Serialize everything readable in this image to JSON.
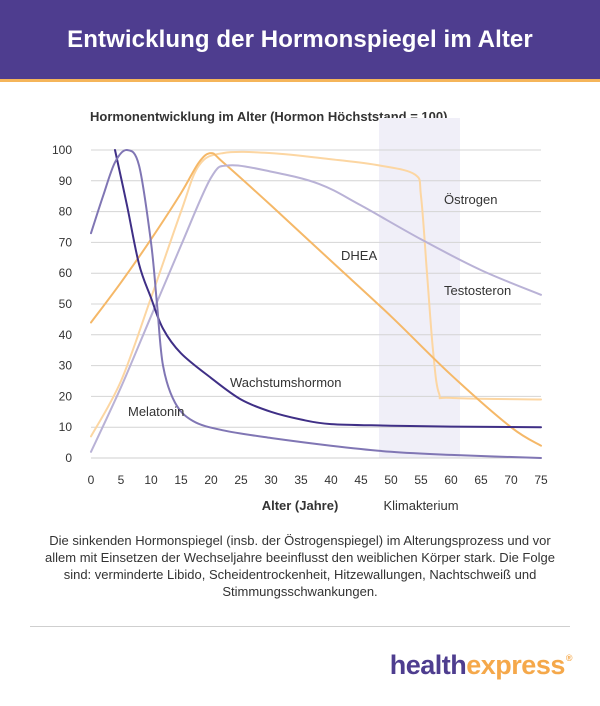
{
  "header": {
    "title": "Entwicklung der Hormonspiegel im Alter"
  },
  "chart_data": {
    "type": "line",
    "title": "Hormonentwicklung im Alter (Hormon Höchststand = 100)",
    "xlabel": "Alter (Jahre)",
    "ylabel": "",
    "xlim": [
      0,
      75
    ],
    "ylim": [
      0,
      100
    ],
    "x_ticks": [
      0,
      5,
      10,
      15,
      20,
      25,
      30,
      35,
      40,
      45,
      50,
      55,
      60,
      65,
      70,
      75
    ],
    "y_ticks": [
      0,
      10,
      20,
      30,
      40,
      50,
      60,
      70,
      80,
      90,
      100
    ],
    "grid": "horizontal",
    "highlight_band": {
      "label": "Klimakterium",
      "x_start": 48,
      "x_end": 61.5,
      "color": "#f0eff8"
    },
    "series": [
      {
        "name": "Östrogen",
        "color": "#fcd6a2",
        "points": [
          [
            0,
            7
          ],
          [
            5,
            25
          ],
          [
            10,
            52
          ],
          [
            15,
            80
          ],
          [
            18,
            95
          ],
          [
            22,
            99
          ],
          [
            30,
            99
          ],
          [
            40,
            97
          ],
          [
            48,
            95
          ],
          [
            54,
            92
          ],
          [
            55,
            85
          ],
          [
            56,
            60
          ],
          [
            57,
            35
          ],
          [
            58,
            21
          ],
          [
            60,
            19.5
          ],
          [
            75,
            19
          ]
        ]
      },
      {
        "name": "DHEA",
        "color": "#f5b868",
        "points": [
          [
            0,
            44
          ],
          [
            5,
            57
          ],
          [
            10,
            71
          ],
          [
            15,
            86
          ],
          [
            18,
            96
          ],
          [
            20,
            99
          ],
          [
            22,
            96
          ],
          [
            30,
            82
          ],
          [
            40,
            64
          ],
          [
            50,
            46
          ],
          [
            60,
            27
          ],
          [
            70,
            10
          ],
          [
            75,
            4
          ]
        ]
      },
      {
        "name": "Testosteron",
        "color": "#b9b2d6",
        "points": [
          [
            0,
            2
          ],
          [
            5,
            23
          ],
          [
            10,
            46
          ],
          [
            15,
            69
          ],
          [
            20,
            91
          ],
          [
            23,
            95
          ],
          [
            30,
            93
          ],
          [
            38,
            89
          ],
          [
            45,
            82
          ],
          [
            55,
            71
          ],
          [
            65,
            61
          ],
          [
            75,
            53
          ]
        ]
      },
      {
        "name": "Wachstumshormon",
        "color": "#3f2f86",
        "points": [
          [
            4,
            100
          ],
          [
            6,
            82
          ],
          [
            8,
            63
          ],
          [
            10,
            52
          ],
          [
            12,
            42
          ],
          [
            15,
            34
          ],
          [
            20,
            26
          ],
          [
            25,
            19
          ],
          [
            30,
            15
          ],
          [
            35,
            12.5
          ],
          [
            40,
            11
          ],
          [
            50,
            10.5
          ],
          [
            60,
            10.2
          ],
          [
            75,
            10
          ]
        ]
      },
      {
        "name": "Melatonin",
        "color": "#8076b4",
        "points": [
          [
            0,
            73
          ],
          [
            2,
            85
          ],
          [
            4,
            96
          ],
          [
            6,
            100
          ],
          [
            8,
            95
          ],
          [
            10,
            70
          ],
          [
            11,
            50
          ],
          [
            12,
            30
          ],
          [
            14,
            18
          ],
          [
            17,
            12
          ],
          [
            22,
            9
          ],
          [
            30,
            6.5
          ],
          [
            40,
            4
          ],
          [
            50,
            2
          ],
          [
            60,
            1
          ],
          [
            75,
            0
          ]
        ]
      }
    ],
    "annotations": [
      {
        "text": "Östrogen",
        "series": "Östrogen"
      },
      {
        "text": "DHEA",
        "series": "DHEA"
      },
      {
        "text": "Testosteron",
        "series": "Testosteron"
      },
      {
        "text": "Wachstumshormon",
        "series": "Wachstumshormon"
      },
      {
        "text": "Melatonin",
        "series": "Melatonin"
      }
    ]
  },
  "caption": "Die sinkenden Hormonspiegel (insb. der Östrogenspiegel) im Alterungsprozess und vor allem mit Einsetzen der Wechseljahre beeinflusst den weiblichen Körper stark. Die Folge sind: verminderte Libido, Scheidentrockenheit, Hitzewallungen, Nachtschweiß und Stimmungsschwankungen.",
  "logo": {
    "part1": "health",
    "part2": "express",
    "mark": "®"
  }
}
